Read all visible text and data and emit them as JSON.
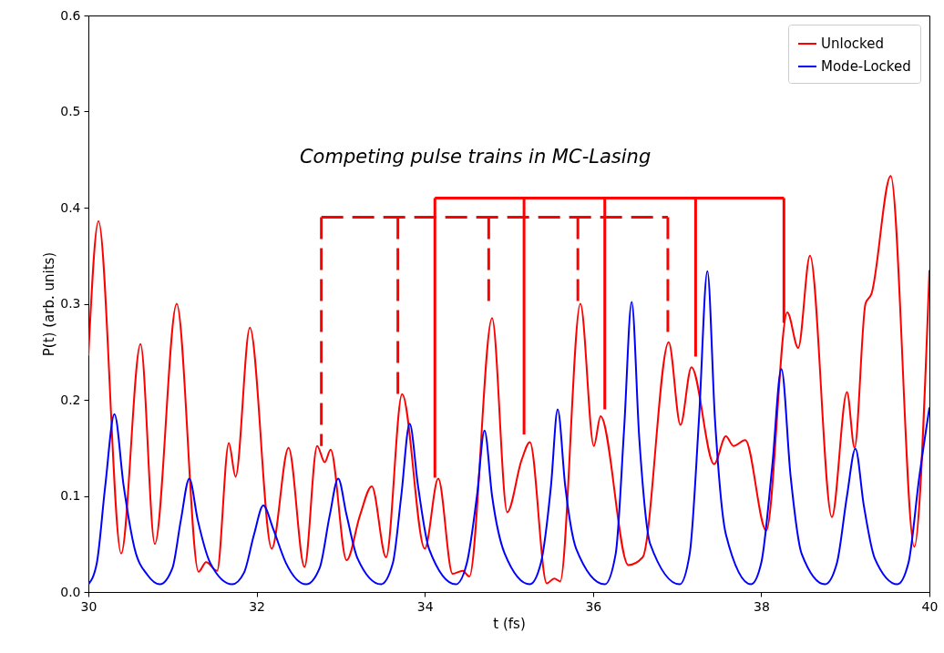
{
  "chart_data": {
    "type": "line",
    "xlabel": "t (fs)",
    "ylabel": "P(t) (arb. units)",
    "annotations": [
      "Competing pulse trains in MC-Lasing"
    ],
    "xlim": [
      30,
      40
    ],
    "xticks": [
      30,
      32,
      34,
      36,
      38,
      40
    ],
    "ylim": [
      0,
      0.6
    ],
    "yticks": [
      {
        "value": 0,
        "label": "0.0"
      },
      0.1,
      0.2,
      0.3,
      0.4,
      0.5,
      0.6
    ],
    "legend": "top right",
    "series": [
      {
        "name": "Unlocked",
        "color": "#ff0000",
        "x": [
          30.0,
          30.12,
          30.39,
          30.62,
          30.79,
          31.05,
          31.31,
          31.4,
          31.53,
          31.67,
          31.75,
          31.92,
          32.18,
          32.38,
          32.57,
          32.72,
          32.81,
          32.88,
          33.07,
          33.23,
          33.37,
          33.54,
          33.73,
          34.0,
          34.16,
          34.33,
          34.45,
          34.53,
          34.8,
          34.98,
          35.15,
          35.25,
          35.45,
          35.54,
          35.61,
          35.85,
          36.01,
          36.09,
          36.42,
          36.59,
          36.9,
          37.04,
          37.17,
          37.44,
          37.58,
          37.67,
          37.81,
          38.06,
          38.31,
          38.44,
          38.58,
          38.84,
          39.02,
          39.11,
          39.24,
          39.31,
          39.54,
          39.82,
          40.0
        ],
        "values": [
          0.246,
          0.386,
          0.04,
          0.258,
          0.05,
          0.3,
          0.021,
          0.031,
          0.022,
          0.155,
          0.12,
          0.275,
          0.045,
          0.15,
          0.026,
          0.152,
          0.135,
          0.148,
          0.033,
          0.08,
          0.11,
          0.036,
          0.206,
          0.045,
          0.118,
          0.019,
          0.022,
          0.016,
          0.285,
          0.083,
          0.137,
          0.156,
          0.009,
          0.014,
          0.011,
          0.3,
          0.152,
          0.183,
          0.028,
          0.036,
          0.26,
          0.174,
          0.234,
          0.133,
          0.162,
          0.152,
          0.158,
          0.064,
          0.291,
          0.254,
          0.35,
          0.078,
          0.208,
          0.15,
          0.3,
          0.31,
          0.433,
          0.047,
          0.335
        ]
      },
      {
        "name": "Mode-Locked",
        "color": "#0000ff",
        "x": [
          30.0,
          30.1,
          30.2,
          30.31,
          30.42,
          30.55,
          30.7,
          30.85,
          31.0,
          31.1,
          31.2,
          31.3,
          31.45,
          31.71,
          31.85,
          31.97,
          32.08,
          32.2,
          32.35,
          32.59,
          32.75,
          32.87,
          32.97,
          33.07,
          33.2,
          33.48,
          33.62,
          33.72,
          33.82,
          33.92,
          34.05,
          34.37,
          34.5,
          34.62,
          34.71,
          34.8,
          34.95,
          35.25,
          35.38,
          35.5,
          35.58,
          35.67,
          35.8,
          36.14,
          36.27,
          36.37,
          36.46,
          36.55,
          36.68,
          37.03,
          37.15,
          37.26,
          37.36,
          37.45,
          37.58,
          37.88,
          38.0,
          38.13,
          38.24,
          38.35,
          38.48,
          38.76,
          38.9,
          39.02,
          39.12,
          39.22,
          39.35,
          39.62,
          39.75,
          39.88,
          40.0
        ],
        "values": [
          0.008,
          0.03,
          0.11,
          0.185,
          0.11,
          0.045,
          0.018,
          0.008,
          0.025,
          0.075,
          0.118,
          0.075,
          0.03,
          0.008,
          0.02,
          0.06,
          0.09,
          0.065,
          0.03,
          0.008,
          0.025,
          0.08,
          0.118,
          0.08,
          0.035,
          0.008,
          0.03,
          0.1,
          0.175,
          0.11,
          0.045,
          0.008,
          0.03,
          0.1,
          0.168,
          0.1,
          0.04,
          0.008,
          0.03,
          0.11,
          0.19,
          0.11,
          0.045,
          0.008,
          0.04,
          0.17,
          0.302,
          0.16,
          0.05,
          0.008,
          0.04,
          0.18,
          0.334,
          0.18,
          0.06,
          0.008,
          0.03,
          0.13,
          0.232,
          0.12,
          0.04,
          0.008,
          0.03,
          0.1,
          0.149,
          0.09,
          0.035,
          0.008,
          0.03,
          0.12,
          0.192
        ]
      }
    ]
  }
}
